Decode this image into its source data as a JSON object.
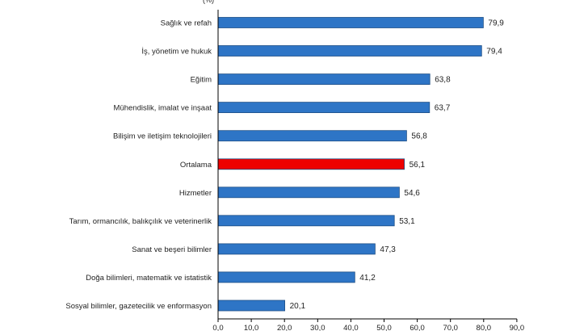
{
  "chart_data": {
    "type": "bar",
    "orientation": "horizontal",
    "unit_label": "(%)",
    "categories": [
      "Sağlık ve refah",
      "İş, yönetim ve hukuk",
      "Eğitim",
      "Mühendislik, imalat ve inşaat",
      "Bilişim ve iletişim teknolojileri",
      "Ortalama",
      "Hizmetler",
      "Tarım, ormancılık, balıkçılık ve veterinerlik",
      "Sanat ve beşeri bilimler",
      "Doğa bilimleri, matematik ve istatistik",
      "Sosyal bilimler, gazetecilik ve enformasyon"
    ],
    "values": [
      79.9,
      79.4,
      63.8,
      63.7,
      56.8,
      56.1,
      54.6,
      53.1,
      47.3,
      41.2,
      20.1
    ],
    "value_labels": [
      "79,9",
      "79,4",
      "63,8",
      "63,7",
      "56,8",
      "56,1",
      "54,6",
      "53,1",
      "47,3",
      "41,2",
      "20,1"
    ],
    "xlim": [
      0,
      90
    ],
    "xticks": [
      "0,0",
      "10,0",
      "20,0",
      "30,0",
      "40,0",
      "50,0",
      "60,0",
      "70,0",
      "80,0",
      "90,0"
    ],
    "highlight_category": "Ortalama",
    "colors": {
      "bar": "#2e75c6",
      "highlight": "#ee0000"
    }
  }
}
